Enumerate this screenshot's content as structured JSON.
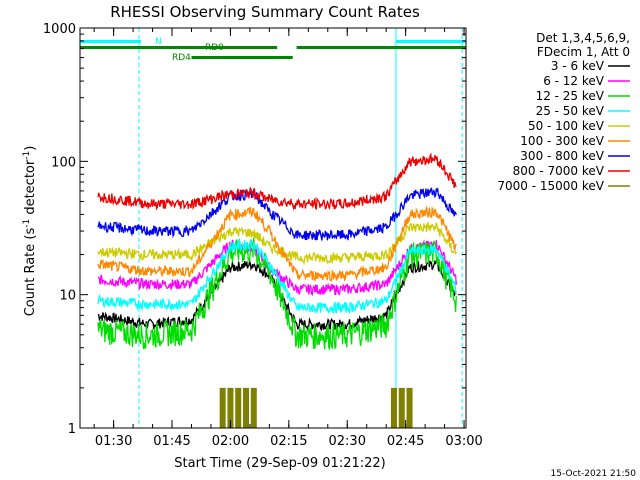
{
  "chart_data": {
    "type": "line",
    "title": "RHESSI Observing Summary Count Rates",
    "xlabel": "Start Time (29-Sep-09 01:21:22)",
    "ylabel": "Count Rate (s",
    "ylabel_sup": "-1",
    "ylabel_end": " detector",
    "ylabel_sup2": "-1",
    "ylabel_close": ")",
    "yscale": "log",
    "ylim": [
      1,
      1000
    ],
    "xlim_minutes": [
      "01:21:22",
      "03:00:30"
    ],
    "x_ticks": [
      "01:30",
      "01:45",
      "02:00",
      "02:15",
      "02:30",
      "02:45",
      "03:00"
    ],
    "y_ticks": [
      "1",
      "10",
      "100",
      "1000"
    ],
    "footer": "15-Oct-2021 21:50",
    "legend_header": [
      "Det 1,3,4,5,6,9,",
      "FDecim 1, Att 0"
    ],
    "series": [
      {
        "name": "3 - 6 keV",
        "color": "#000000",
        "x": [
          "01:26",
          "01:39",
          "01:50",
          "02:00",
          "02:06",
          "02:10",
          "02:17",
          "02:30",
          "02:40",
          "02:46",
          "02:53",
          "02:58"
        ],
        "values": [
          7,
          6,
          6.5,
          16,
          17,
          14,
          6,
          6,
          7,
          16,
          17,
          9.5
        ]
      },
      {
        "name": "6 - 12 keV",
        "color": "#ff00ff",
        "x": [
          "01:26",
          "01:39",
          "01:50",
          "02:00",
          "02:06",
          "02:10",
          "02:17",
          "02:30",
          "02:40",
          "02:46",
          "02:53",
          "02:58"
        ],
        "values": [
          13,
          12,
          12,
          24,
          22,
          16,
          11,
          11,
          12,
          22,
          24,
          13
        ]
      },
      {
        "name": "12 - 25 keV",
        "color": "#00dd00",
        "x": [
          "01:26",
          "01:39",
          "01:50",
          "02:00",
          "02:06",
          "02:10",
          "02:17",
          "02:30",
          "02:40",
          "02:46",
          "02:53",
          "02:58"
        ],
        "values": [
          5.5,
          5,
          5.5,
          21,
          22,
          15,
          5,
          5,
          6,
          20,
          21,
          9
        ]
      },
      {
        "name": "25 - 50 keV",
        "color": "#00ffff",
        "x": [
          "01:26",
          "01:39",
          "01:50",
          "02:00",
          "02:06",
          "02:10",
          "02:17",
          "02:30",
          "02:40",
          "02:46",
          "02:53",
          "02:58"
        ],
        "values": [
          9,
          8.5,
          8.5,
          23,
          24,
          17,
          8,
          8,
          9,
          21,
          22,
          11
        ]
      },
      {
        "name": "50 - 100 keV",
        "color": "#cccc00",
        "x": [
          "01:26",
          "01:39",
          "01:50",
          "02:00",
          "02:06",
          "02:10",
          "02:17",
          "02:30",
          "02:40",
          "02:46",
          "02:53",
          "02:58"
        ],
        "values": [
          21,
          20,
          20,
          30,
          29,
          23,
          19,
          19,
          20,
          32,
          32,
          20
        ]
      },
      {
        "name": "100 - 300 keV",
        "color": "#ff8800",
        "x": [
          "01:26",
          "01:39",
          "01:50",
          "02:00",
          "02:06",
          "02:10",
          "02:17",
          "02:30",
          "02:40",
          "02:46",
          "02:53",
          "02:58"
        ],
        "values": [
          17,
          15,
          15,
          40,
          42,
          30,
          14,
          14,
          16,
          40,
          42,
          22
        ]
      },
      {
        "name": "300 - 800 keV",
        "color": "#0000ee",
        "x": [
          "01:26",
          "01:39",
          "01:50",
          "02:00",
          "02:06",
          "02:10",
          "02:17",
          "02:30",
          "02:40",
          "02:46",
          "02:53",
          "02:58"
        ],
        "values": [
          33,
          30,
          30,
          55,
          57,
          42,
          28,
          28,
          32,
          55,
          60,
          38
        ]
      },
      {
        "name": "800 - 7000 keV",
        "color": "#ee0000",
        "x": [
          "01:26",
          "01:39",
          "01:50",
          "02:00",
          "02:06",
          "02:10",
          "02:17",
          "02:30",
          "02:40",
          "02:46",
          "02:53",
          "02:58"
        ],
        "values": [
          55,
          48,
          48,
          57,
          58,
          52,
          48,
          48,
          55,
          100,
          105,
          65
        ]
      },
      {
        "name": "7000 - 15000 keV",
        "color": "#808000",
        "x": [
          "01:58",
          "02:00",
          "02:02",
          "02:04",
          "02:06",
          "02:42",
          "02:44",
          "02:46"
        ],
        "values": [
          2,
          2,
          2,
          2,
          2,
          2,
          2,
          2
        ]
      }
    ],
    "flags": [
      {
        "label": "N",
        "color": "#00ffff",
        "segments": [
          [
            "01:21:22",
            "01:37:00"
          ],
          [
            "02:42:30",
            "03:00:30"
          ]
        ]
      },
      {
        "label": "RD0",
        "color": "#008800",
        "segments": [
          [
            "01:21:22",
            "02:12:00"
          ],
          [
            "02:17:00",
            "03:00:30"
          ]
        ]
      },
      {
        "label": "RD4",
        "color": "#008800",
        "segments": [
          [
            "01:50:00",
            "02:16:00"
          ]
        ]
      }
    ],
    "night_markers": [
      "01:36:30",
      "02:42:30",
      "02:59:30"
    ],
    "grid": false,
    "legend_placement": "right"
  }
}
